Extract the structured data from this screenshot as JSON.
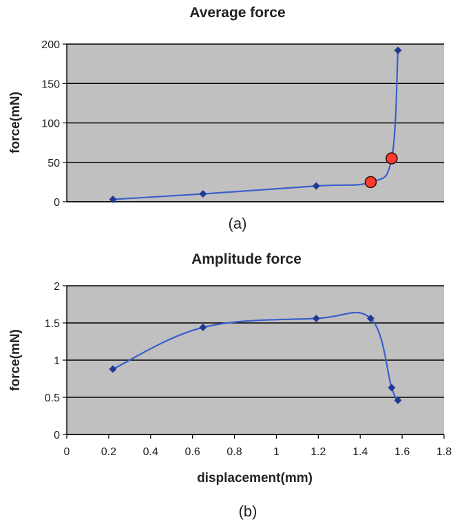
{
  "chart_data": [
    {
      "type": "line",
      "title": "Average force",
      "ylabel": "force(mN)",
      "xlabel": "",
      "panel_label": "(a)",
      "xlim": [
        0,
        1.8
      ],
      "ylim": [
        0,
        200
      ],
      "yticks": [
        0,
        50,
        100,
        150,
        200
      ],
      "xticks": [],
      "grid": "horizontal",
      "series": [
        {
          "x": [
            0.22,
            0.65,
            1.19,
            1.45,
            1.55,
            1.58
          ],
          "y": [
            3,
            10,
            20,
            25,
            55,
            192
          ]
        }
      ],
      "highlighted_points": [
        {
          "x": 1.45,
          "y": 25
        },
        {
          "x": 1.55,
          "y": 55
        }
      ],
      "colors": {
        "line": "#3a5fcd",
        "marker": "#1f3a93",
        "highlight": "#ff3b2f",
        "plot_bg": "#c0c0c0"
      }
    },
    {
      "type": "line",
      "title": "Amplitude force",
      "ylabel": "force(mN)",
      "xlabel": "displacement(mm)",
      "panel_label": "(b)",
      "xlim": [
        0,
        1.8
      ],
      "ylim": [
        0,
        2
      ],
      "yticks": [
        0,
        0.5,
        1,
        1.5,
        2
      ],
      "xticks": [
        0,
        0.2,
        0.4,
        0.6,
        0.8,
        1,
        1.2,
        1.4,
        1.6,
        1.8
      ],
      "grid": "horizontal",
      "series": [
        {
          "x": [
            0.22,
            0.65,
            1.19,
            1.45,
            1.55,
            1.58
          ],
          "y": [
            0.88,
            1.44,
            1.56,
            1.56,
            0.63,
            0.46
          ]
        }
      ],
      "colors": {
        "line": "#3a5fcd",
        "marker": "#1f3a93",
        "plot_bg": "#c0c0c0"
      }
    }
  ]
}
